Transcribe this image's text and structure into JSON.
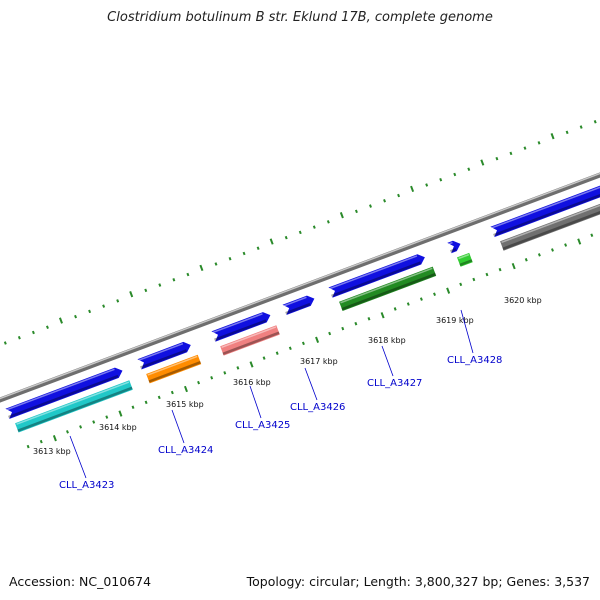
{
  "title": "Clostridium botulinum B str. Eklund 17B, complete genome",
  "footer": {
    "accession": "Accession: NC_010674",
    "topology": "Topology: circular; Length: 3,800,327 bp; Genes: 3,537"
  },
  "colors": {
    "backbone": "#8a8a8a",
    "tick": "#2a8a2a",
    "label_link": "#0000cc",
    "strand_forward": "#1010e0"
  },
  "ticks": [
    {
      "label": "3613 kbp"
    },
    {
      "label": "3614 kbp"
    },
    {
      "label": "3615 kbp"
    },
    {
      "label": "3616 kbp"
    },
    {
      "label": "3617 kbp"
    },
    {
      "label": "3618 kbp"
    },
    {
      "label": "3619 kbp"
    },
    {
      "label": "3620 kbp"
    }
  ],
  "genes": [
    {
      "id": "CLL_A3423",
      "strand_color": "#1010e0",
      "feature_color": "#20c8c8"
    },
    {
      "id": "CLL_A3424",
      "strand_color": "#1010e0",
      "feature_color": "#ff8c00"
    },
    {
      "id": "CLL_A3425",
      "strand_color": "#1010e0",
      "feature_color": "#f08080"
    },
    {
      "id": "CLL_A3426",
      "strand_color": "#1010e0",
      "feature_color": ""
    },
    {
      "id": "CLL_A3427",
      "strand_color": "#1010e0",
      "feature_color": "#228b22"
    },
    {
      "id": "CLL_A3428",
      "strand_color": "#1010e0",
      "feature_color": "#32cd32"
    },
    {
      "id": "",
      "strand_color": "#1010e0",
      "feature_color": "#707070"
    }
  ]
}
